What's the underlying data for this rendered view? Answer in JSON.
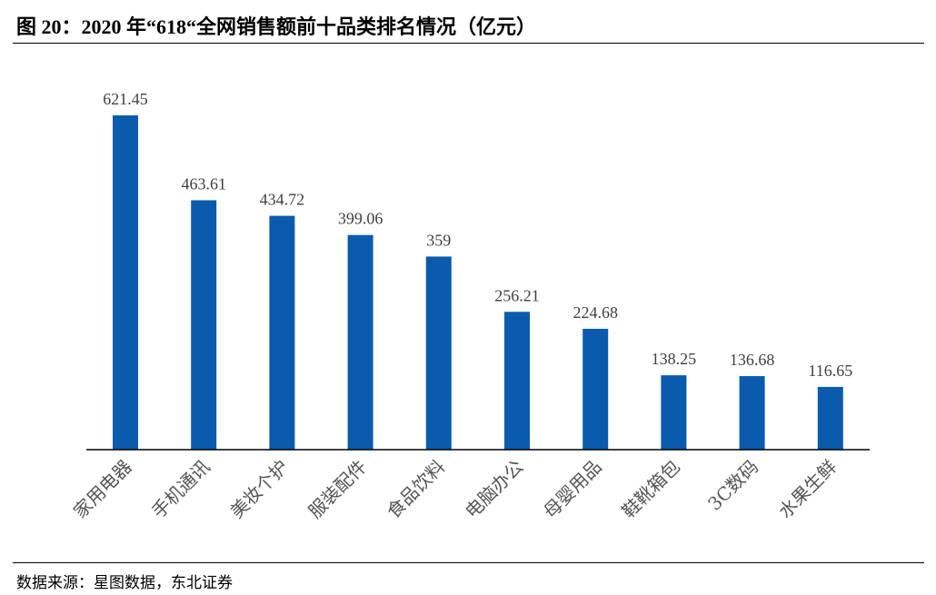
{
  "chart_data": {
    "type": "bar",
    "title": "图 20：2020 年“618“全网销售额前十品类排名情况（亿元）",
    "categories": [
      "家用电器",
      "手机通讯",
      "美妆个护",
      "服装配件",
      "食品饮料",
      "电脑办公",
      "母婴用品",
      "鞋靴箱包",
      "3C数码",
      "水果生鲜"
    ],
    "values": [
      621.45,
      463.61,
      434.72,
      399.06,
      359,
      256.21,
      224.68,
      138.25,
      136.68,
      116.65
    ],
    "value_labels": [
      "621.45",
      "463.61",
      "434.72",
      "399.06",
      "359",
      "256.21",
      "224.68",
      "138.25",
      "136.68",
      "116.65"
    ],
    "xlabel": "",
    "ylabel": "",
    "ylim": [
      0,
      640
    ],
    "grid": false,
    "legend": "none",
    "bar_color": "#0A5BAE"
  },
  "source": "数据来源：星图数据，东北证券"
}
